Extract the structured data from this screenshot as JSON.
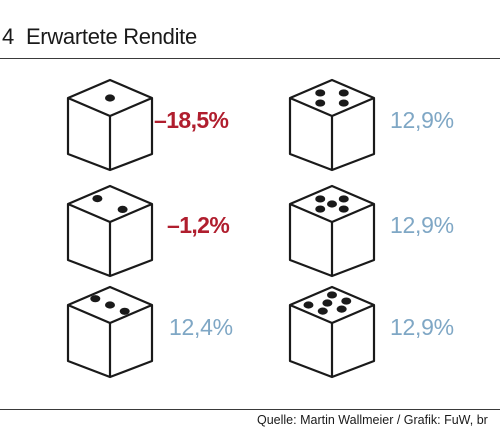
{
  "figure": {
    "number": "4",
    "title": "Erwartete Rendite"
  },
  "dice": [
    {
      "face": 1,
      "value": "–18,5%",
      "sign": "negative"
    },
    {
      "face": 2,
      "value": "–1,2%",
      "sign": "negative"
    },
    {
      "face": 3,
      "value": "12,4%",
      "sign": "positive"
    },
    {
      "face": 4,
      "value": "12,9%",
      "sign": "positive"
    },
    {
      "face": 5,
      "value": "12,9%",
      "sign": "positive"
    },
    {
      "face": 6,
      "value": "12,9%",
      "sign": "positive"
    }
  ],
  "colors": {
    "negative": "#b01e2e",
    "positive": "#7fa7c5",
    "ink": "#1a1a1a"
  },
  "source": "Quelle: Martin Wallmeier / Grafik: FuW, br"
}
